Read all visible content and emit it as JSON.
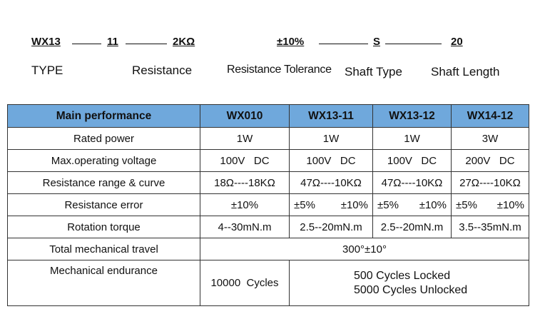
{
  "model_code": {
    "type_code": "WX13",
    "resistance_code": "11",
    "resistance_value": "2KΩ",
    "tolerance": "±10%",
    "shaft_type": "S",
    "shaft_length": "20"
  },
  "code_labels": {
    "type": "TYPE",
    "resistance": "Resistance",
    "tolerance": "Resistance Tolerance",
    "shaft_type": "Shaft Type",
    "shaft_length": "Shaft Length"
  },
  "table": {
    "header": [
      "Main performance",
      "WX010",
      "WX13-11",
      "WX13-12",
      "WX14-12"
    ],
    "rows": [
      {
        "label": "Rated power",
        "cells": [
          "1W",
          "1W",
          "1W",
          "3W"
        ]
      },
      {
        "label": "Max.operating voltage",
        "cells": [
          "100V   DC",
          "100V   DC",
          "100V   DC",
          "200V   DC"
        ]
      },
      {
        "label": "Resistance range & curve",
        "cells": [
          "18Ω----18KΩ",
          "47Ω----10KΩ",
          "47Ω----10KΩ",
          "27Ω----10KΩ"
        ]
      },
      {
        "label": "Resistance error",
        "wx010": "±10%",
        "pairs": [
          [
            "±5%",
            "±10%"
          ],
          [
            "±5%",
            "±10%"
          ],
          [
            "±5%",
            "±10%"
          ]
        ]
      },
      {
        "label": "Rotation torque",
        "cells": [
          "4--30mN.m",
          "2.5--20mN.m",
          "2.5--20mN.m",
          "3.5--35mN.m"
        ]
      },
      {
        "label": "Total mechanical travel",
        "merged": "300°±10°"
      },
      {
        "label": "Mechanical endurance",
        "wx010": "10000  Cycles",
        "merged_lines": [
          "500 Cycles Locked",
          "5000 Cycles Unlocked"
        ]
      }
    ]
  }
}
